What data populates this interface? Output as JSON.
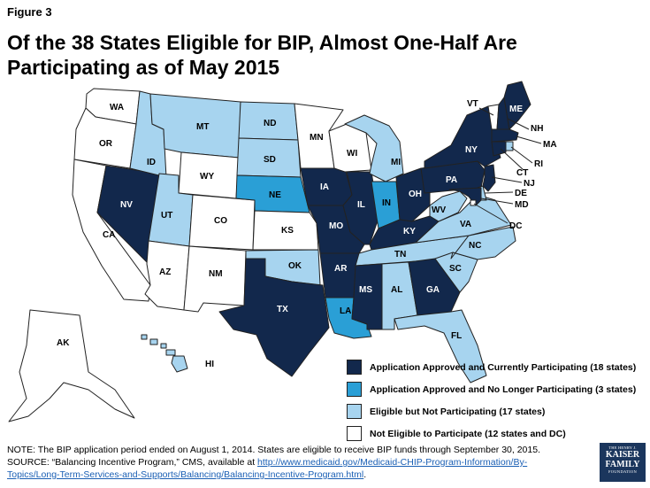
{
  "figure_label": "Figure 3",
  "title_line1": "Of the 38 States Eligible for BIP, Almost One-Half Are",
  "title_line2": "Participating as of May 2015",
  "colors": {
    "participating": "#12284c",
    "no_longer": "#2a9fd6",
    "eligible_not": "#a7d4ef",
    "not_eligible": "#ffffff"
  },
  "legend": [
    {
      "key": "participating",
      "label": "Application Approved and Currently Participating (18 states)"
    },
    {
      "key": "no_longer",
      "label": "Application Approved and No Longer Participating (3 states)"
    },
    {
      "key": "eligible_not",
      "label": "Eligible but Not Participating (17 states)"
    },
    {
      "key": "not_eligible",
      "label": "Not Eligible to Participate (12 states and DC)"
    }
  ],
  "states": {
    "WA": "not_eligible",
    "OR": "not_eligible",
    "CA": "not_eligible",
    "NV": "participating",
    "ID": "eligible_not",
    "MT": "eligible_not",
    "WY": "not_eligible",
    "UT": "eligible_not",
    "AZ": "not_eligible",
    "CO": "not_eligible",
    "NM": "not_eligible",
    "ND": "eligible_not",
    "SD": "eligible_not",
    "NE": "no_longer",
    "KS": "not_eligible",
    "OK": "eligible_not",
    "TX": "participating",
    "MN": "not_eligible",
    "IA": "participating",
    "MO": "participating",
    "AR": "participating",
    "LA": "no_longer",
    "WI": "not_eligible",
    "IL": "participating",
    "MI": "eligible_not",
    "IN": "no_longer",
    "OH": "participating",
    "KY": "participating",
    "TN": "eligible_not",
    "MS": "participating",
    "AL": "eligible_not",
    "GA": "participating",
    "FL": "eligible_not",
    "SC": "eligible_not",
    "NC": "eligible_not",
    "VA": "eligible_not",
    "WV": "eligible_not",
    "PA": "participating",
    "NY": "participating",
    "VT": "not_eligible",
    "NH": "participating",
    "ME": "participating",
    "MA": "participating",
    "RI": "eligible_not",
    "CT": "participating",
    "NJ": "participating",
    "DE": "eligible_not",
    "MD": "participating",
    "DC": "not_eligible",
    "AK": "not_eligible",
    "HI": "eligible_not"
  },
  "labels": {
    "WA": "WA",
    "OR": "OR",
    "CA": "CA",
    "NV": "NV",
    "ID": "ID",
    "MT": "MT",
    "WY": "WY",
    "UT": "UT",
    "AZ": "AZ",
    "CO": "CO",
    "NM": "NM",
    "ND": "ND",
    "SD": "SD",
    "NE": "NE",
    "KS": "KS",
    "OK": "OK",
    "TX": "TX",
    "MN": "MN",
    "IA": "IA",
    "MO": "MO",
    "AR": "AR",
    "LA": "LA",
    "WI": "WI",
    "IL": "IL",
    "MI": "MI",
    "IN": "IN",
    "OH": "OH",
    "KY": "KY",
    "TN": "TN",
    "MS": "MS",
    "AL": "AL",
    "GA": "GA",
    "FL": "FL",
    "SC": "SC",
    "NC": "NC",
    "VA": "VA",
    "WV": "WV",
    "PA": "PA",
    "NY": "NY",
    "VT": "VT",
    "NH": "NH",
    "ME": "ME",
    "MA": "MA",
    "RI": "RI",
    "CT": "CT",
    "NJ": "NJ",
    "DE": "DE",
    "MD": "MD",
    "DC": "DC",
    "AK": "AK",
    "HI": "HI"
  },
  "note": {
    "line1": "NOTE: The BIP application period ended on August 1, 2014. States are eligible to receive BIP funds through September 30, 2015.",
    "source_prefix": "SOURCE: “Balancing Incentive Program,” CMS, available at ",
    "link_part1": "http://www.medicaid.gov/Medicaid-CHIP-Program-Information/By-",
    "link_part2": "Topics/Long-Term-Services-and-Supports/Balancing/Balancing-Incentive-Program.html",
    "suffix": "."
  },
  "logo": {
    "line1": "THE HENRY J.",
    "line2": "KAISER",
    "line3": "FAMILY",
    "line4": "FOUNDATION"
  }
}
